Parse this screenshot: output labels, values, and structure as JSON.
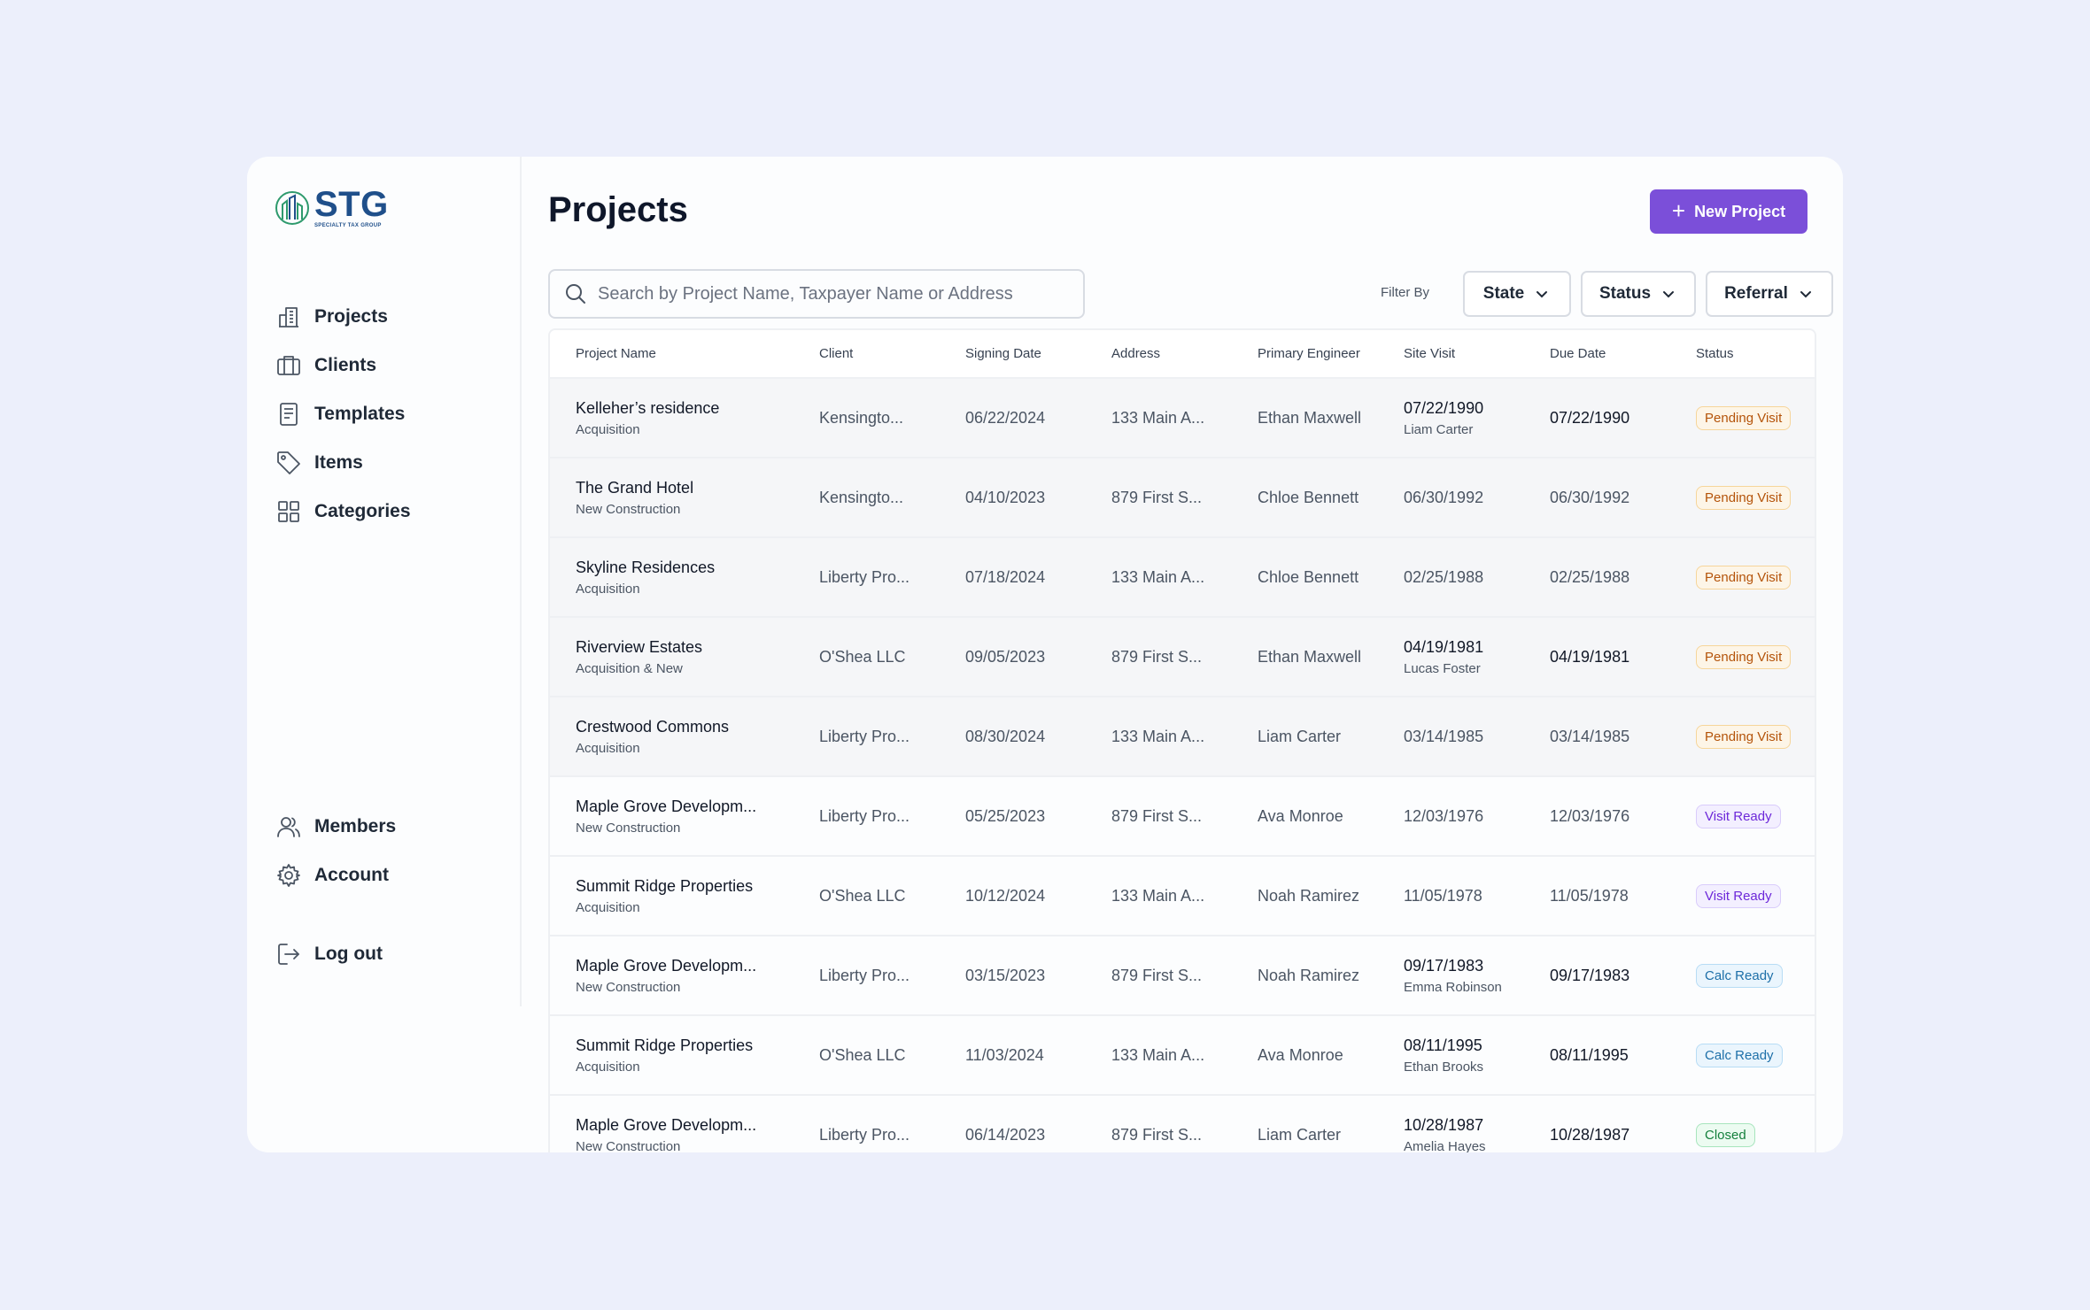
{
  "brand": {
    "word": "STG",
    "tagline": "SPECIALTY TAX GROUP"
  },
  "nav": {
    "items": [
      {
        "label": "Projects",
        "icon": "building-icon"
      },
      {
        "label": "Clients",
        "icon": "briefcase-icon"
      },
      {
        "label": "Templates",
        "icon": "document-icon"
      },
      {
        "label": "Items",
        "icon": "tag-icon"
      },
      {
        "label": "Categories",
        "icon": "grid-icon"
      }
    ],
    "bottom": [
      {
        "label": "Members",
        "icon": "users-icon"
      },
      {
        "label": "Account",
        "icon": "gear-icon"
      }
    ],
    "logout": {
      "label": "Log out",
      "icon": "logout-icon"
    }
  },
  "page": {
    "title": "Projects",
    "new_button": "New Project",
    "search_placeholder": "Search by Project Name, Taxpayer Name or Address",
    "filter_label": "Filter By",
    "filters": [
      "State",
      "Status",
      "Referral"
    ]
  },
  "table": {
    "columns": [
      "Project Name",
      "Client",
      "Signing Date",
      "Address",
      "Primary Engineer",
      "Site Visit",
      "Due Date",
      "Status"
    ],
    "rows": [
      {
        "name": "Kelleher’s residence",
        "type": "Acquisition",
        "client": "Kensingto...",
        "signing": "06/22/2024",
        "address": "133 Main A...",
        "engineer": "Ethan Maxwell",
        "site_visit": "07/22/1990",
        "site_person": "Liam Carter",
        "due": "07/22/1990",
        "status": "Pending Visit",
        "status_kind": "pending"
      },
      {
        "name": "The Grand Hotel",
        "type": "New Construction",
        "client": "Kensingto...",
        "signing": "04/10/2023",
        "address": "879 First S...",
        "engineer": "Chloe Bennett",
        "site_visit": "06/30/1992",
        "site_person": "",
        "due": "06/30/1992",
        "status": "Pending Visit",
        "status_kind": "pending"
      },
      {
        "name": "Skyline Residences",
        "type": "Acquisition",
        "client": "Liberty Pro...",
        "signing": "07/18/2024",
        "address": "133 Main A...",
        "engineer": "Chloe Bennett",
        "site_visit": "02/25/1988",
        "site_person": "",
        "due": "02/25/1988",
        "status": "Pending Visit",
        "status_kind": "pending"
      },
      {
        "name": "Riverview Estates",
        "type": "Acquisition & New",
        "client": "O'Shea LLC",
        "signing": "09/05/2023",
        "address": "879 First S...",
        "engineer": "Ethan Maxwell",
        "site_visit": "04/19/1981",
        "site_person": "Lucas Foster",
        "due": "04/19/1981",
        "status": "Pending Visit",
        "status_kind": "pending"
      },
      {
        "name": "Crestwood Commons",
        "type": "Acquisition",
        "client": "Liberty Pro...",
        "signing": "08/30/2024",
        "address": "133 Main A...",
        "engineer": "Liam Carter",
        "site_visit": "03/14/1985",
        "site_person": "",
        "due": "03/14/1985",
        "status": "Pending Visit",
        "status_kind": "pending"
      },
      {
        "name": "Maple Grove Developm...",
        "type": "New Construction",
        "client": "Liberty Pro...",
        "signing": "05/25/2023",
        "address": "879 First S...",
        "engineer": "Ava Monroe",
        "site_visit": "12/03/1976",
        "site_person": "",
        "due": "12/03/1976",
        "status": "Visit Ready",
        "status_kind": "visit"
      },
      {
        "name": "Summit Ridge Properties",
        "type": "Acquisition",
        "client": "O'Shea LLC",
        "signing": "10/12/2024",
        "address": "133 Main A...",
        "engineer": "Noah Ramirez",
        "site_visit": "11/05/1978",
        "site_person": "",
        "due": "11/05/1978",
        "status": "Visit Ready",
        "status_kind": "visit"
      },
      {
        "name": "Maple Grove Developm...",
        "type": "New Construction",
        "client": "Liberty Pro...",
        "signing": "03/15/2023",
        "address": "879 First S...",
        "engineer": "Noah Ramirez",
        "site_visit": "09/17/1983",
        "site_person": "Emma Robinson",
        "due": "09/17/1983",
        "status": "Calc Ready",
        "status_kind": "calc"
      },
      {
        "name": "Summit Ridge Properties",
        "type": "Acquisition",
        "client": "O'Shea LLC",
        "signing": "11/03/2024",
        "address": "133 Main A...",
        "engineer": "Ava Monroe",
        "site_visit": "08/11/1995",
        "site_person": "Ethan Brooks",
        "due": "08/11/1995",
        "status": "Calc Ready",
        "status_kind": "calc"
      },
      {
        "name": "Maple Grove Developm...",
        "type": "New Construction",
        "client": "Liberty Pro...",
        "signing": "06/14/2023",
        "address": "879 First S...",
        "engineer": "Liam Carter",
        "site_visit": "10/28/1987",
        "site_person": "Amelia Hayes",
        "due": "10/28/1987",
        "status": "Closed",
        "status_kind": "closed"
      }
    ]
  },
  "colors": {
    "accent": "#7b4fd9",
    "brand": "#1f4f8a",
    "brand_green": "#2e9a6d"
  }
}
